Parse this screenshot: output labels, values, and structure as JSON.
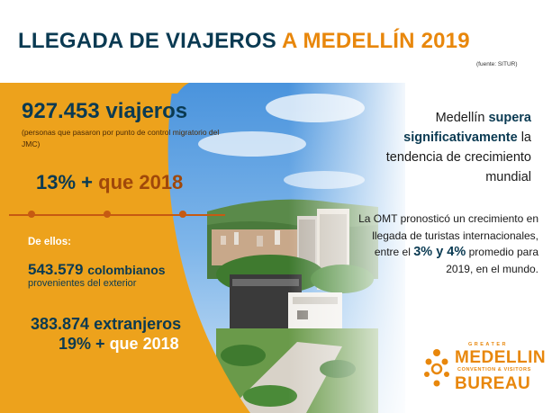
{
  "title": {
    "main": "LLEGADA DE VIAJEROS",
    "highlight": "A MEDELLÍN 2019"
  },
  "source": "(fuente: SITUR)",
  "travelers": {
    "count": "927.453 viajeros",
    "note": "(personas que pasaron por punto de control migratorio del JMC)",
    "pct_value": "13% +",
    "pct_suffix": "que 2018"
  },
  "breakdown": {
    "intro": "De ellos:",
    "colombians_count": "543.579",
    "colombians_label": "colombianos",
    "colombians_sub": "provenientes del exterior",
    "foreigners_count": "383.874 extranjeros",
    "foreigners_pct": "19% +",
    "foreigners_pct_suffix": "que 2018"
  },
  "statement_1": {
    "prefix": "Medellín",
    "bold": "supera significativamente",
    "suffix": "la tendencia de crecimiento mundial"
  },
  "statement_2": {
    "prefix": "La OMT pronosticó un crecimiento en llegada de turistas internacionales, entre el",
    "bold": "3% y 4%",
    "suffix": "promedio para 2019, en el mundo."
  },
  "logo": {
    "top": "GREATER",
    "name": "MEDELLIN",
    "tagline": "CONVENTION & VISITORS",
    "bottom": "BUREAU"
  },
  "colors": {
    "orange": "#eda21c",
    "navy": "#0a3a52",
    "accent_brown": "#a0480a",
    "logo_orange": "#e8870c"
  },
  "icons": [
    "medellin-bureau-logo-icon"
  ]
}
